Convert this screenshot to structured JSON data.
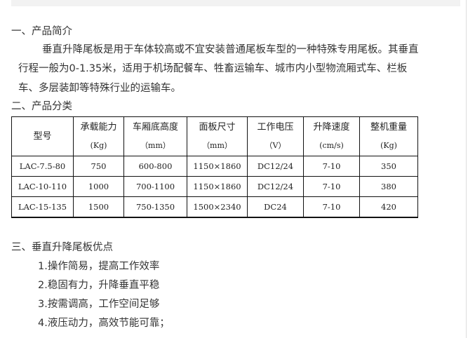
{
  "section1": {
    "heading": "一、产品简介",
    "paragraph_lines": [
      "垂直升降尾板是用于车体较高或不宜安装普通尾板车型的一种特殊专用尾板。其垂直",
      "行程一般为0-1.35米，适用于机场配餐车、牲畜运输车、城市内小型物流厢式车、栏板",
      "车、多层装卸等特殊行业的运输车。"
    ]
  },
  "section2": {
    "heading": "二、产品分类"
  },
  "table": {
    "headers": [
      {
        "label": "型号",
        "unit": ""
      },
      {
        "label": "承载能力",
        "unit": "(Kg)"
      },
      {
        "label": "车厢底高度",
        "unit": "（mm）"
      },
      {
        "label": "面板尺寸",
        "unit": "（mm）"
      },
      {
        "label": "工作电压",
        "unit": "（V）"
      },
      {
        "label": "升降速度",
        "unit": "(cm/s)"
      },
      {
        "label": "整机重量",
        "unit": "(Kg)"
      }
    ],
    "rows": [
      [
        "LAC-7.5-80",
        "750",
        "600-800",
        "1150×1860",
        "DC12/24",
        "7-10",
        "350"
      ],
      [
        "LAC-10-110",
        "1000",
        "700-1100",
        "1150×1860",
        "DC12/24",
        "7-10",
        "380"
      ],
      [
        "LAC-15-135",
        "1500",
        "750-1350",
        "1500×2340",
        "DC24",
        "7-10",
        "420"
      ]
    ]
  },
  "section3": {
    "heading": "三、垂直升降尾板优点",
    "items": [
      "1.操作简易，提高工作效率",
      "2.稳固有力，升降垂直平稳",
      "3.按需调高，工作空间足够",
      "4.液压动力，高效节能可靠；"
    ]
  }
}
